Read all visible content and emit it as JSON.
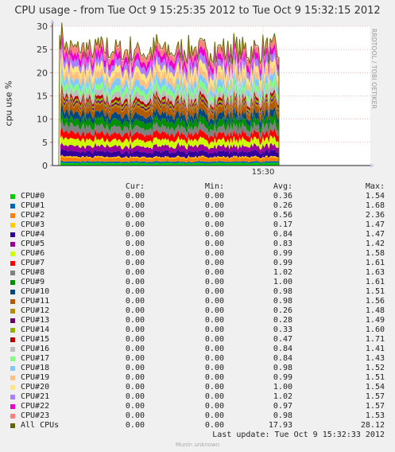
{
  "title": "CPU usage - from Tue Oct  9 15:25:35 2012 to Tue Oct  9 15:32:15 2012",
  "side_text": "RRDTOOL / TOBI OETIKER",
  "footer": "Munin unknown",
  "last_update": "Last update:  Tue Oct  9 15:32:33 2012",
  "headers": {
    "cur": "Cur:",
    "min": "Min:",
    "avg": "Avg:",
    "max": "Max:"
  },
  "legend": [
    {
      "name": "CPU#0",
      "color": "#00cc00",
      "cur": "0.00",
      "min": "0.00",
      "avg": "0.36",
      "max": "1.54"
    },
    {
      "name": "CPU#1",
      "color": "#0066b3",
      "cur": "0.00",
      "min": "0.00",
      "avg": "0.26",
      "max": "1.68"
    },
    {
      "name": "CPU#2",
      "color": "#ff8000",
      "cur": "0.00",
      "min": "0.00",
      "avg": "0.56",
      "max": "2.36"
    },
    {
      "name": "CPU#3",
      "color": "#ffcc00",
      "cur": "0.00",
      "min": "0.00",
      "avg": "0.17",
      "max": "1.47"
    },
    {
      "name": "CPU#4",
      "color": "#330099",
      "cur": "0.00",
      "min": "0.00",
      "avg": "0.84",
      "max": "1.47"
    },
    {
      "name": "CPU#5",
      "color": "#990099",
      "cur": "0.00",
      "min": "0.00",
      "avg": "0.83",
      "max": "1.42"
    },
    {
      "name": "CPU#6",
      "color": "#ccff00",
      "cur": "0.00",
      "min": "0.00",
      "avg": "0.99",
      "max": "1.58"
    },
    {
      "name": "CPU#7",
      "color": "#ff0000",
      "cur": "0.00",
      "min": "0.00",
      "avg": "0.99",
      "max": "1.61"
    },
    {
      "name": "CPU#8",
      "color": "#808080",
      "cur": "0.00",
      "min": "0.00",
      "avg": "1.02",
      "max": "1.63"
    },
    {
      "name": "CPU#9",
      "color": "#008f00",
      "cur": "0.00",
      "min": "0.00",
      "avg": "1.00",
      "max": "1.61"
    },
    {
      "name": "CPU#10",
      "color": "#00487d",
      "cur": "0.00",
      "min": "0.00",
      "avg": "0.98",
      "max": "1.51"
    },
    {
      "name": "CPU#11",
      "color": "#b35a00",
      "cur": "0.00",
      "min": "0.00",
      "avg": "0.98",
      "max": "1.56"
    },
    {
      "name": "CPU#12",
      "color": "#b38f00",
      "cur": "0.00",
      "min": "0.00",
      "avg": "0.26",
      "max": "1.48"
    },
    {
      "name": "CPU#13",
      "color": "#6b006b",
      "cur": "0.00",
      "min": "0.00",
      "avg": "0.28",
      "max": "1.49"
    },
    {
      "name": "CPU#14",
      "color": "#8fb300",
      "cur": "0.00",
      "min": "0.00",
      "avg": "0.33",
      "max": "1.60"
    },
    {
      "name": "CPU#15",
      "color": "#b30000",
      "cur": "0.00",
      "min": "0.00",
      "avg": "0.47",
      "max": "1.71"
    },
    {
      "name": "CPU#16",
      "color": "#bebebe",
      "cur": "0.00",
      "min": "0.00",
      "avg": "0.84",
      "max": "1.41"
    },
    {
      "name": "CPU#17",
      "color": "#80ff80",
      "cur": "0.00",
      "min": "0.00",
      "avg": "0.84",
      "max": "1.43"
    },
    {
      "name": "CPU#18",
      "color": "#80c9ff",
      "cur": "0.00",
      "min": "0.00",
      "avg": "0.98",
      "max": "1.52"
    },
    {
      "name": "CPU#19",
      "color": "#ffc080",
      "cur": "0.00",
      "min": "0.00",
      "avg": "0.99",
      "max": "1.51"
    },
    {
      "name": "CPU#20",
      "color": "#ffe680",
      "cur": "0.00",
      "min": "0.00",
      "avg": "1.00",
      "max": "1.54"
    },
    {
      "name": "CPU#21",
      "color": "#aa80ff",
      "cur": "0.00",
      "min": "0.00",
      "avg": "1.02",
      "max": "1.57"
    },
    {
      "name": "CPU#22",
      "color": "#ee00cc",
      "cur": "0.00",
      "min": "0.00",
      "avg": "0.97",
      "max": "1.57"
    },
    {
      "name": "CPU#23",
      "color": "#ff8080",
      "cur": "0.00",
      "min": "0.00",
      "avg": "0.98",
      "max": "1.53"
    },
    {
      "name": "All CPUs",
      "color": "#666600",
      "cur": "0.00",
      "min": "0.00",
      "avg": "17.93",
      "max": "28.12"
    }
  ],
  "chart_data": {
    "type": "area",
    "stacked": true,
    "title": "CPU usage - from Tue Oct  9 15:25:35 2012 to Tue Oct  9 15:32:15 2012",
    "ylabel": "cpu use %",
    "ylim": [
      0,
      30
    ],
    "yticks": [
      0,
      5,
      10,
      15,
      20,
      25,
      30
    ],
    "xlim": [
      "15:25:35",
      "15:32:15"
    ],
    "xticks": [
      "15:30"
    ],
    "data_span": [
      "15:25:35",
      "15:30:20"
    ],
    "series_note_total_peak": 28.12,
    "grid": true
  }
}
